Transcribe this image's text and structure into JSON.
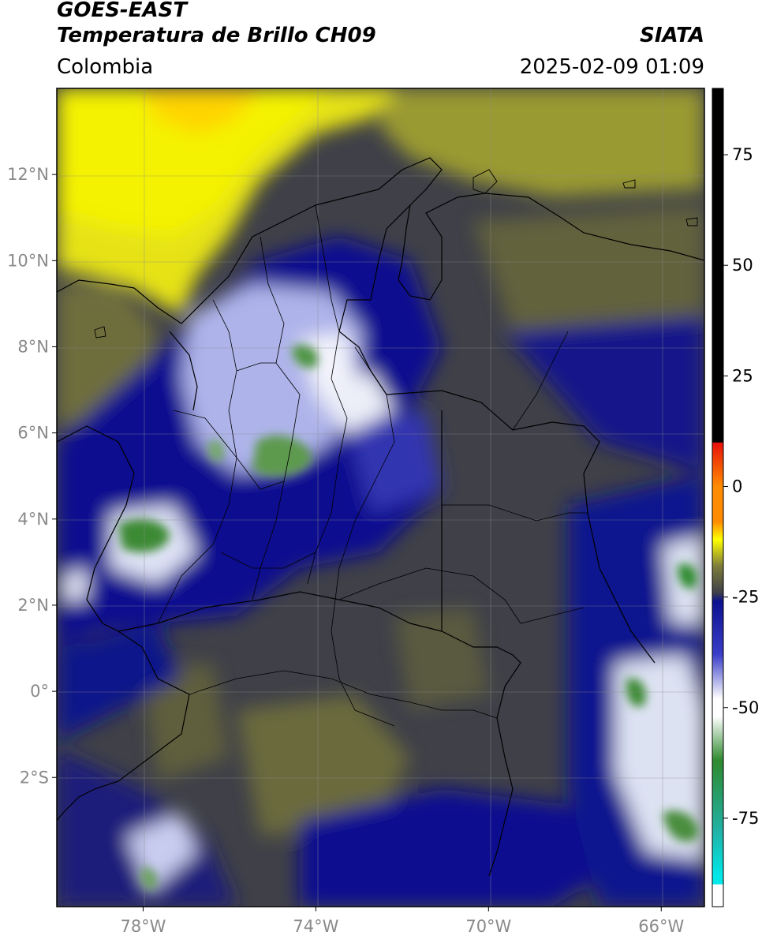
{
  "header": {
    "title_line1": "GOES-EAST",
    "title_line2": "Temperatura de Brillo CH09",
    "organization": "SIATA",
    "region": "Colombia",
    "datetime": "2025-02-09 01:09"
  },
  "map": {
    "lon_ticks": [
      {
        "value": -78,
        "label": "78°W"
      },
      {
        "value": -74,
        "label": "74°W"
      },
      {
        "value": -70,
        "label": "70°W"
      },
      {
        "value": -66,
        "label": "66°W"
      }
    ],
    "lat_ticks": [
      {
        "value": 12,
        "label": "12°N"
      },
      {
        "value": 10,
        "label": "10°N"
      },
      {
        "value": 8,
        "label": "8°N"
      },
      {
        "value": 6,
        "label": "6°N"
      },
      {
        "value": 4,
        "label": "4°N"
      },
      {
        "value": 2,
        "label": "2°N"
      },
      {
        "value": 0,
        "label": "0°"
      },
      {
        "value": -2,
        "label": "2°S"
      }
    ],
    "lon_range": [
      -80,
      -65
    ],
    "lat_range": [
      -5,
      14
    ],
    "grid": true
  },
  "colorbar": {
    "range": [
      -95,
      90
    ],
    "ticks": [
      {
        "value": 75,
        "label": "75"
      },
      {
        "value": 50,
        "label": "50"
      },
      {
        "value": 25,
        "label": "25"
      },
      {
        "value": 0,
        "label": "0"
      },
      {
        "value": -25,
        "label": "-25"
      },
      {
        "value": -50,
        "label": "-50"
      },
      {
        "value": -75,
        "label": "-75"
      }
    ],
    "colors": {
      "warm_black": "#000000",
      "red": "#e8100a",
      "orange": "#ff8c00",
      "yellow": "#ffff00",
      "olive": "#7d7d3a",
      "dark_gray": "#3f4048",
      "navy": "#0c1190",
      "blue": "#3a3ec8",
      "white": "#ffffff",
      "green": "#2e8a2e",
      "teal": "#20b2a6",
      "cyan": "#00e8e8"
    }
  }
}
